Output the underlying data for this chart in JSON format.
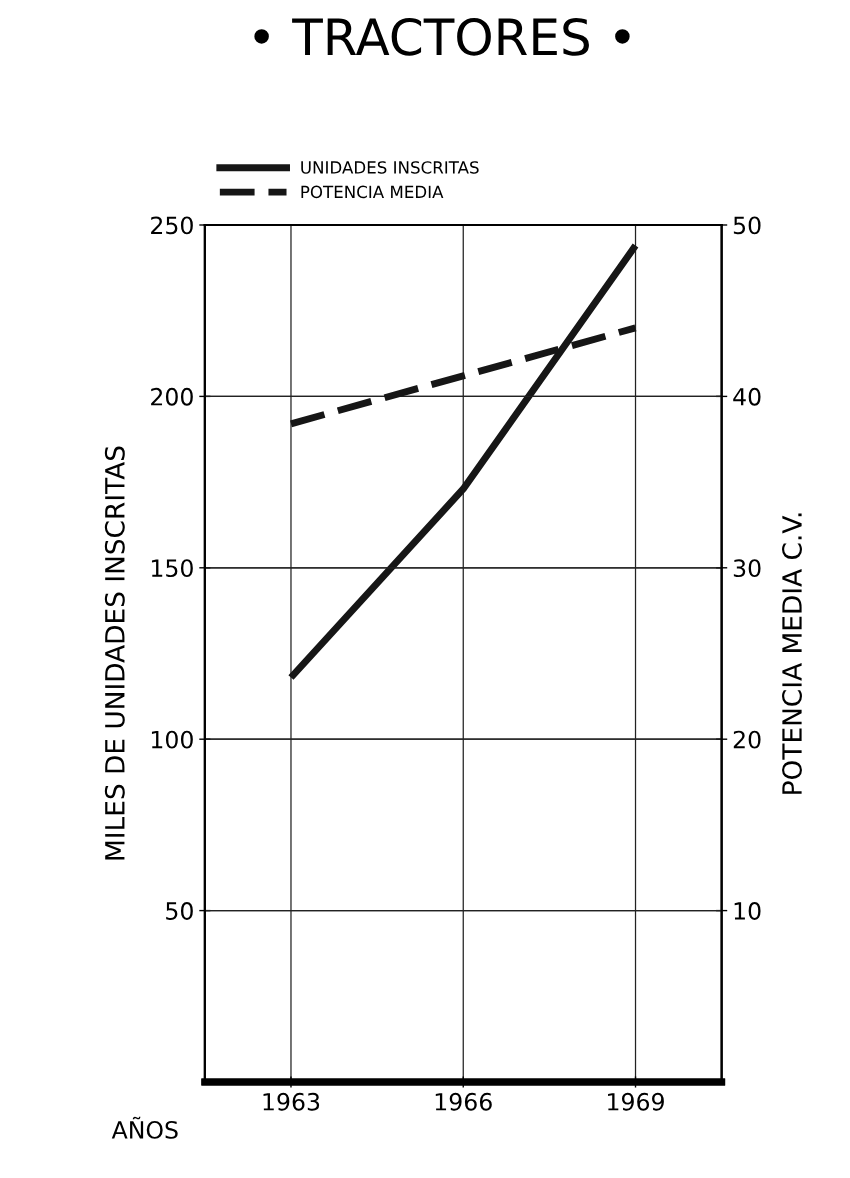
{
  "chart_data": {
    "type": "line",
    "title": "• TRACTORES •",
    "xlabel": "AÑOS",
    "ylabel": "MILES DE UNIDADES INSCRITAS",
    "y2label": "POTENCIA MEDIA C.V.",
    "x": [
      1963,
      1966,
      1969
    ],
    "series": [
      {
        "name": "UNIDADES INSCRITAS",
        "color": "#161616",
        "values": [
          118,
          173,
          244
        ],
        "line_style": "solid"
      },
      {
        "name": "POTENCIA MEDIA",
        "color": "#161616",
        "values": [
          38.4,
          41.2,
          44.0
        ],
        "line_style": "dashed",
        "axis": "y2"
      }
    ],
    "xlim": [
      1961.5,
      1970.5
    ],
    "xticks": [
      1963,
      1966,
      1969
    ],
    "ylim": [
      0,
      250
    ],
    "yticks": [
      50,
      100,
      150,
      200,
      250
    ],
    "y2lim": [
      0,
      50
    ],
    "y2ticks": [
      10,
      20,
      30,
      40,
      50
    ],
    "grid": true,
    "legend": "top left",
    "marker": "none"
  }
}
